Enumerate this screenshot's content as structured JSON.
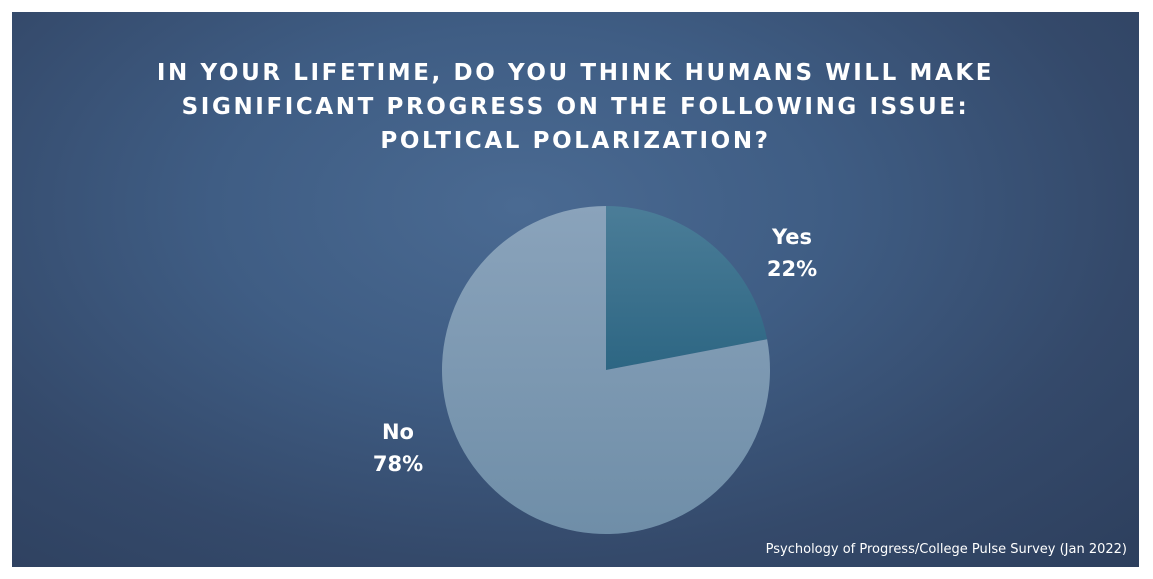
{
  "chart_data": {
    "type": "pie",
    "title_lines": [
      "IN YOUR LIFETIME, DO YOU THINK HUMANS WILL MAKE",
      "SIGNIFICANT PROGRESS ON THE FOLLOWING ISSUE:",
      "POLTICAL POLARIZATION?"
    ],
    "slices": [
      {
        "label": "Yes",
        "value": 22,
        "value_label": "22%",
        "color": "#2f6a88"
      },
      {
        "label": "No",
        "value": 78,
        "value_label": "78%",
        "color": "#7896ae"
      }
    ],
    "start_angle_deg": 0,
    "direction": "clockwise"
  },
  "source": "Psychology of Progress/College Pulse Survey (Jan 2022)"
}
